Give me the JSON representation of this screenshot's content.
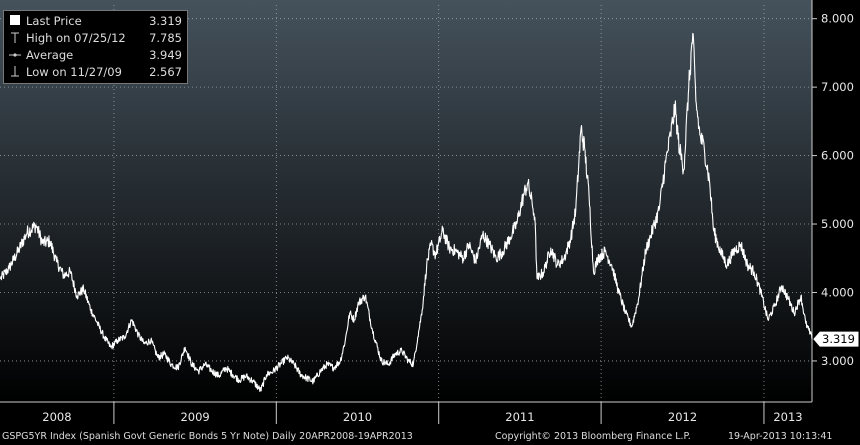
{
  "legend": {
    "items": [
      {
        "label": "Last Price",
        "value": "3.319",
        "icon": "filled-square"
      },
      {
        "label": "High on 07/25/12",
        "value": "7.785",
        "icon": "high-marker"
      },
      {
        "label": "Average",
        "value": "3.949",
        "icon": "average-line"
      },
      {
        "label": "Low on 11/27/09",
        "value": "2.567",
        "icon": "low-marker"
      }
    ]
  },
  "last_price_tag": "3.319",
  "footer": {
    "left": "GSPG5YR Index (Spanish Govt Generic Bonds 5 Yr Note)  Daily 20APR2008-19APR2013",
    "center": "Copyright© 2013 Bloomberg Finance L.P.",
    "right": "19-Apr-2013 10:13:41"
  },
  "chart_data": {
    "type": "line",
    "x_range": [
      "2008-04-20",
      "2013-04-19"
    ],
    "ylim": [
      2.4,
      8.2
    ],
    "y_ticks": [
      3,
      4,
      5,
      6,
      7,
      8
    ],
    "y_tick_labels": [
      "3.000",
      "4.000",
      "5.000",
      "6.000",
      "7.000",
      "8.000"
    ],
    "x_tick_labels": [
      "2008",
      "2009",
      "2010",
      "2011",
      "2012",
      "2013"
    ],
    "x_tick_years": [
      2008,
      2009,
      2010,
      2011,
      2012,
      2013
    ],
    "grid": true,
    "legend_position": "top-left",
    "series": [
      {
        "name": "Last Price",
        "color": "#ffffff",
        "points": [
          [
            "2008-04-21",
            4.2
          ],
          [
            "2008-05-10",
            4.35
          ],
          [
            "2008-06-01",
            4.62
          ],
          [
            "2008-06-20",
            4.88
          ],
          [
            "2008-07-10",
            4.98
          ],
          [
            "2008-07-25",
            4.72
          ],
          [
            "2008-08-10",
            4.75
          ],
          [
            "2008-08-25",
            4.45
          ],
          [
            "2008-09-10",
            4.25
          ],
          [
            "2008-09-25",
            4.3
          ],
          [
            "2008-10-10",
            3.95
          ],
          [
            "2008-10-25",
            4.05
          ],
          [
            "2008-11-10",
            3.75
          ],
          [
            "2008-11-25",
            3.55
          ],
          [
            "2008-12-10",
            3.35
          ],
          [
            "2008-12-25",
            3.2
          ],
          [
            "2009-01-10",
            3.3
          ],
          [
            "2009-01-25",
            3.35
          ],
          [
            "2009-02-10",
            3.6
          ],
          [
            "2009-02-25",
            3.38
          ],
          [
            "2009-03-10",
            3.25
          ],
          [
            "2009-03-25",
            3.3
          ],
          [
            "2009-04-10",
            3.05
          ],
          [
            "2009-04-25",
            3.1
          ],
          [
            "2009-05-10",
            2.95
          ],
          [
            "2009-05-25",
            2.9
          ],
          [
            "2009-06-10",
            3.2
          ],
          [
            "2009-06-25",
            2.95
          ],
          [
            "2009-07-10",
            2.85
          ],
          [
            "2009-07-25",
            2.95
          ],
          [
            "2009-08-10",
            2.85
          ],
          [
            "2009-08-25",
            2.78
          ],
          [
            "2009-09-10",
            2.9
          ],
          [
            "2009-09-25",
            2.8
          ],
          [
            "2009-10-10",
            2.72
          ],
          [
            "2009-10-25",
            2.78
          ],
          [
            "2009-11-10",
            2.7
          ],
          [
            "2009-11-27",
            2.567
          ],
          [
            "2009-12-10",
            2.8
          ],
          [
            "2009-12-25",
            2.85
          ],
          [
            "2010-01-10",
            2.95
          ],
          [
            "2010-01-25",
            3.05
          ],
          [
            "2010-02-10",
            2.95
          ],
          [
            "2010-02-25",
            2.8
          ],
          [
            "2010-03-10",
            2.75
          ],
          [
            "2010-03-25",
            2.7
          ],
          [
            "2010-04-10",
            2.85
          ],
          [
            "2010-04-25",
            2.95
          ],
          [
            "2010-05-10",
            2.9
          ],
          [
            "2010-05-25",
            3.0
          ],
          [
            "2010-06-05",
            3.3
          ],
          [
            "2010-06-15",
            3.7
          ],
          [
            "2010-06-25",
            3.6
          ],
          [
            "2010-07-05",
            3.85
          ],
          [
            "2010-07-20",
            3.95
          ],
          [
            "2010-08-05",
            3.45
          ],
          [
            "2010-08-25",
            3.0
          ],
          [
            "2010-09-10",
            2.95
          ],
          [
            "2010-09-25",
            3.1
          ],
          [
            "2010-10-10",
            3.15
          ],
          [
            "2010-10-25",
            3.0
          ],
          [
            "2010-11-05",
            2.95
          ],
          [
            "2010-11-15",
            3.35
          ],
          [
            "2010-11-25",
            3.75
          ],
          [
            "2010-12-05",
            4.4
          ],
          [
            "2010-12-15",
            4.7
          ],
          [
            "2010-12-25",
            4.55
          ],
          [
            "2011-01-10",
            4.9
          ],
          [
            "2011-01-25",
            4.65
          ],
          [
            "2011-02-10",
            4.6
          ],
          [
            "2011-02-25",
            4.5
          ],
          [
            "2011-03-10",
            4.7
          ],
          [
            "2011-03-25",
            4.45
          ],
          [
            "2011-04-10",
            4.85
          ],
          [
            "2011-04-25",
            4.7
          ],
          [
            "2011-05-10",
            4.5
          ],
          [
            "2011-05-25",
            4.6
          ],
          [
            "2011-06-10",
            4.8
          ],
          [
            "2011-06-25",
            5.0
          ],
          [
            "2011-07-10",
            5.4
          ],
          [
            "2011-07-20",
            5.6
          ],
          [
            "2011-07-30",
            5.3
          ],
          [
            "2011-08-05",
            5.1
          ],
          [
            "2011-08-10",
            4.2
          ],
          [
            "2011-08-25",
            4.3
          ],
          [
            "2011-09-10",
            4.65
          ],
          [
            "2011-09-25",
            4.4
          ],
          [
            "2011-10-10",
            4.5
          ],
          [
            "2011-10-25",
            4.8
          ],
          [
            "2011-11-05",
            5.2
          ],
          [
            "2011-11-17",
            6.4
          ],
          [
            "2011-11-25",
            6.1
          ],
          [
            "2011-12-05",
            5.4
          ],
          [
            "2011-12-15",
            4.3
          ],
          [
            "2011-12-25",
            4.5
          ],
          [
            "2012-01-10",
            4.6
          ],
          [
            "2012-01-25",
            4.4
          ],
          [
            "2012-02-10",
            4.0
          ],
          [
            "2012-02-25",
            3.7
          ],
          [
            "2012-03-10",
            3.5
          ],
          [
            "2012-03-25",
            3.9
          ],
          [
            "2012-04-10",
            4.6
          ],
          [
            "2012-04-25",
            4.9
          ],
          [
            "2012-05-10",
            5.2
          ],
          [
            "2012-05-25",
            5.9
          ],
          [
            "2012-06-05",
            6.3
          ],
          [
            "2012-06-15",
            6.7
          ],
          [
            "2012-06-25",
            6.1
          ],
          [
            "2012-07-05",
            5.8
          ],
          [
            "2012-07-15",
            6.9
          ],
          [
            "2012-07-25",
            7.785
          ],
          [
            "2012-08-01",
            6.8
          ],
          [
            "2012-08-10",
            6.3
          ],
          [
            "2012-08-20",
            6.1
          ],
          [
            "2012-09-01",
            5.6
          ],
          [
            "2012-09-10",
            4.9
          ],
          [
            "2012-09-25",
            4.6
          ],
          [
            "2012-10-10",
            4.4
          ],
          [
            "2012-10-25",
            4.6
          ],
          [
            "2012-11-10",
            4.7
          ],
          [
            "2012-11-25",
            4.4
          ],
          [
            "2012-12-10",
            4.3
          ],
          [
            "2012-12-25",
            4.0
          ],
          [
            "2013-01-10",
            3.6
          ],
          [
            "2013-01-25",
            3.8
          ],
          [
            "2013-02-10",
            4.1
          ],
          [
            "2013-02-25",
            3.9
          ],
          [
            "2013-03-10",
            3.7
          ],
          [
            "2013-03-25",
            3.95
          ],
          [
            "2013-04-05",
            3.55
          ],
          [
            "2013-04-15",
            3.4
          ],
          [
            "2013-04-19",
            3.319
          ]
        ]
      }
    ]
  }
}
